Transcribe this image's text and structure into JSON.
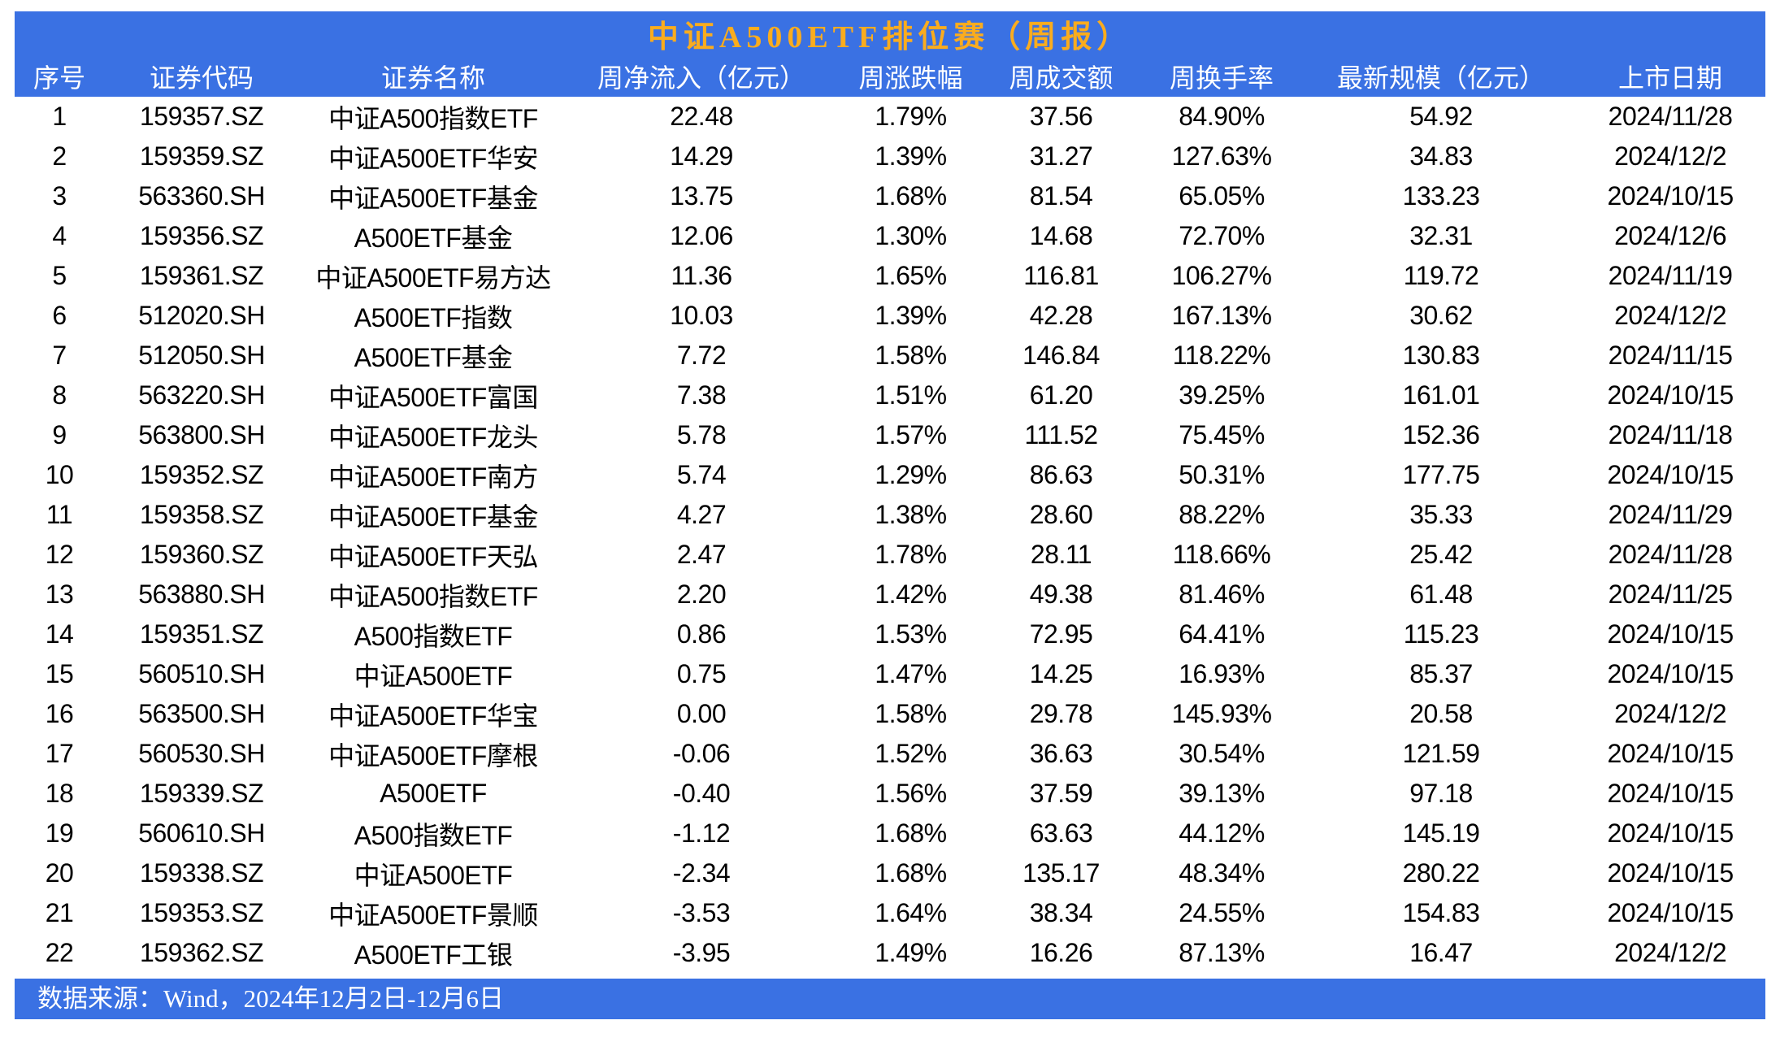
{
  "title": "中证A500ETF排位赛（周报）",
  "footer": {
    "source_text": "数据来源：Wind，2024年12月2日-12月6日"
  },
  "colors": {
    "header_bg": "#3a71e3",
    "title_text": "#faac1e",
    "header_text": "#ffffff",
    "body_text": "#000000",
    "page_bg": "#ffffff"
  },
  "chart_data": {
    "type": "table",
    "title": "中证A500ETF排位赛（周报）",
    "columns": [
      "序号",
      "证券代码",
      "证券名称",
      "周净流入（亿元）",
      "周涨跌幅",
      "周成交额",
      "周换手率",
      "最新规模（亿元）",
      "上市日期"
    ],
    "rows": [
      [
        "1",
        "159357.SZ",
        "中证A500指数ETF",
        "22.48",
        "1.79%",
        "37.56",
        "84.90%",
        "54.92",
        "2024/11/28"
      ],
      [
        "2",
        "159359.SZ",
        "中证A500ETF华安",
        "14.29",
        "1.39%",
        "31.27",
        "127.63%",
        "34.83",
        "2024/12/2"
      ],
      [
        "3",
        "563360.SH",
        "中证A500ETF基金",
        "13.75",
        "1.68%",
        "81.54",
        "65.05%",
        "133.23",
        "2024/10/15"
      ],
      [
        "4",
        "159356.SZ",
        "A500ETF基金",
        "12.06",
        "1.30%",
        "14.68",
        "72.70%",
        "32.31",
        "2024/12/6"
      ],
      [
        "5",
        "159361.SZ",
        "中证A500ETF易方达",
        "11.36",
        "1.65%",
        "116.81",
        "106.27%",
        "119.72",
        "2024/11/19"
      ],
      [
        "6",
        "512020.SH",
        "A500ETF指数",
        "10.03",
        "1.39%",
        "42.28",
        "167.13%",
        "30.62",
        "2024/12/2"
      ],
      [
        "7",
        "512050.SH",
        "A500ETF基金",
        "7.72",
        "1.58%",
        "146.84",
        "118.22%",
        "130.83",
        "2024/11/15"
      ],
      [
        "8",
        "563220.SH",
        "中证A500ETF富国",
        "7.38",
        "1.51%",
        "61.20",
        "39.25%",
        "161.01",
        "2024/10/15"
      ],
      [
        "9",
        "563800.SH",
        "中证A500ETF龙头",
        "5.78",
        "1.57%",
        "111.52",
        "75.45%",
        "152.36",
        "2024/11/18"
      ],
      [
        "10",
        "159352.SZ",
        "中证A500ETF南方",
        "5.74",
        "1.29%",
        "86.63",
        "50.31%",
        "177.75",
        "2024/10/15"
      ],
      [
        "11",
        "159358.SZ",
        "中证A500ETF基金",
        "4.27",
        "1.38%",
        "28.60",
        "88.22%",
        "35.33",
        "2024/11/29"
      ],
      [
        "12",
        "159360.SZ",
        "中证A500ETF天弘",
        "2.47",
        "1.78%",
        "28.11",
        "118.66%",
        "25.42",
        "2024/11/28"
      ],
      [
        "13",
        "563880.SH",
        "中证A500指数ETF",
        "2.20",
        "1.42%",
        "49.38",
        "81.46%",
        "61.48",
        "2024/11/25"
      ],
      [
        "14",
        "159351.SZ",
        "A500指数ETF",
        "0.86",
        "1.53%",
        "72.95",
        "64.41%",
        "115.23",
        "2024/10/15"
      ],
      [
        "15",
        "560510.SH",
        "中证A500ETF",
        "0.75",
        "1.47%",
        "14.25",
        "16.93%",
        "85.37",
        "2024/10/15"
      ],
      [
        "16",
        "563500.SH",
        "中证A500ETF华宝",
        "0.00",
        "1.58%",
        "29.78",
        "145.93%",
        "20.58",
        "2024/12/2"
      ],
      [
        "17",
        "560530.SH",
        "中证A500ETF摩根",
        "-0.06",
        "1.52%",
        "36.63",
        "30.54%",
        "121.59",
        "2024/10/15"
      ],
      [
        "18",
        "159339.SZ",
        "A500ETF",
        "-0.40",
        "1.56%",
        "37.59",
        "39.13%",
        "97.18",
        "2024/10/15"
      ],
      [
        "19",
        "560610.SH",
        "A500指数ETF",
        "-1.12",
        "1.68%",
        "63.63",
        "44.12%",
        "145.19",
        "2024/10/15"
      ],
      [
        "20",
        "159338.SZ",
        "中证A500ETF",
        "-2.34",
        "1.68%",
        "135.17",
        "48.34%",
        "280.22",
        "2024/10/15"
      ],
      [
        "21",
        "159353.SZ",
        "中证A500ETF景顺",
        "-3.53",
        "1.64%",
        "38.34",
        "24.55%",
        "154.83",
        "2024/10/15"
      ],
      [
        "22",
        "159362.SZ",
        "A500ETF工银",
        "-3.95",
        "1.49%",
        "16.26",
        "87.13%",
        "16.47",
        "2024/12/2"
      ]
    ]
  }
}
